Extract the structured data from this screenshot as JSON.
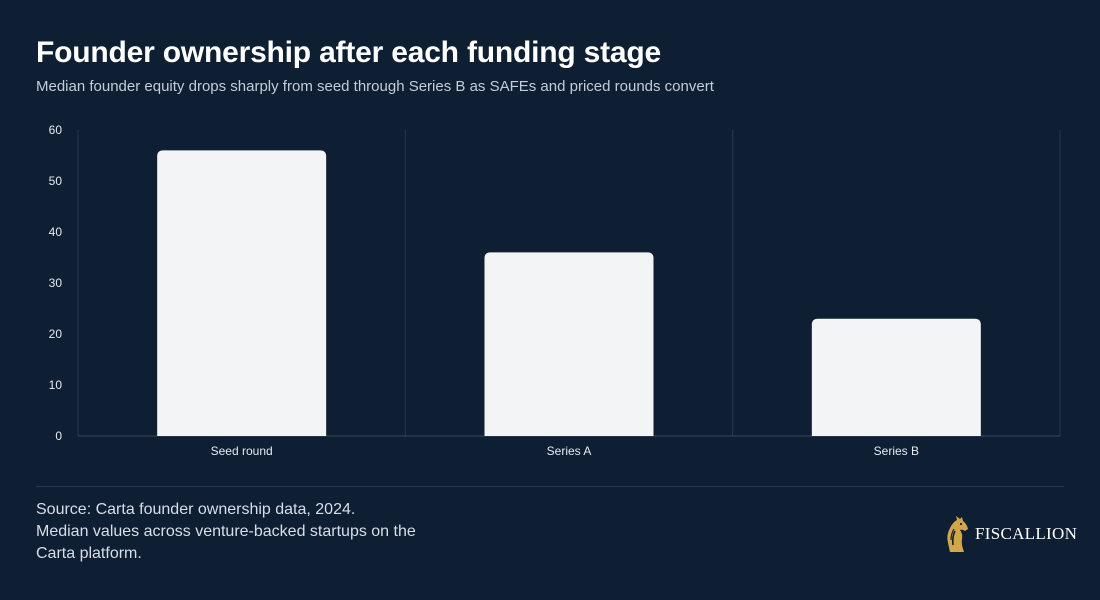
{
  "header": {
    "title": "Founder ownership after each funding stage",
    "subtitle": "Median founder equity drops sharply from seed through Series B as SAFEs and priced rounds convert"
  },
  "footer": {
    "source_line1": "Source: Carta founder ownership data, 2024.",
    "source_line2": "Median values across venture-backed startups on the Carta platform.",
    "brand_name": "FISCALLION",
    "brand_icon": "horse-head-logo-icon"
  },
  "colors": {
    "background": "#0f1f33",
    "bar": "#f3f4f6",
    "grid": "#2a3a4e",
    "axis_text": "#e6ebf1",
    "brand_gold": "#d4a64a"
  },
  "chart_data": {
    "type": "bar",
    "categories": [
      "Seed round",
      "Series A",
      "Series B"
    ],
    "values": [
      56,
      36,
      23
    ],
    "ylim": [
      0,
      60
    ],
    "yticks": [
      0,
      10,
      20,
      30,
      40,
      50,
      60
    ],
    "grid": "vertical category separators",
    "legend": "none"
  }
}
